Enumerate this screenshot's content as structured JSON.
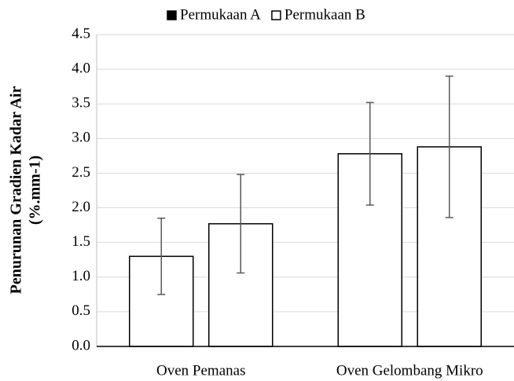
{
  "chart_data": {
    "type": "bar",
    "y_label": [
      "Penurunan Gradien Kadar Air",
      "(%.mm-1)"
    ],
    "categories": [
      "Oven Pemanas",
      "Oven Gelombang Mikro"
    ],
    "series": [
      {
        "name": "Permukaan A",
        "color": "#ffffff",
        "values": [
          1.3,
          2.78
        ],
        "errors": [
          0.55,
          0.74
        ]
      },
      {
        "name": "Permukaan B",
        "color": "#ffffff",
        "values": [
          1.77,
          2.88
        ],
        "errors": [
          0.71,
          1.02
        ]
      }
    ],
    "ylim": [
      0,
      4.5
    ],
    "yticks": [
      {
        "value": 0,
        "label": "0.0"
      },
      0.5,
      {
        "value": 1,
        "label": "1.0"
      },
      1.5,
      {
        "value": 2,
        "label": "2.0"
      },
      2.5,
      {
        "value": 3,
        "label": "3.0"
      },
      3.5,
      {
        "value": 4,
        "label": "4.0"
      },
      4.5
    ],
    "grid": true,
    "legend": "top"
  }
}
